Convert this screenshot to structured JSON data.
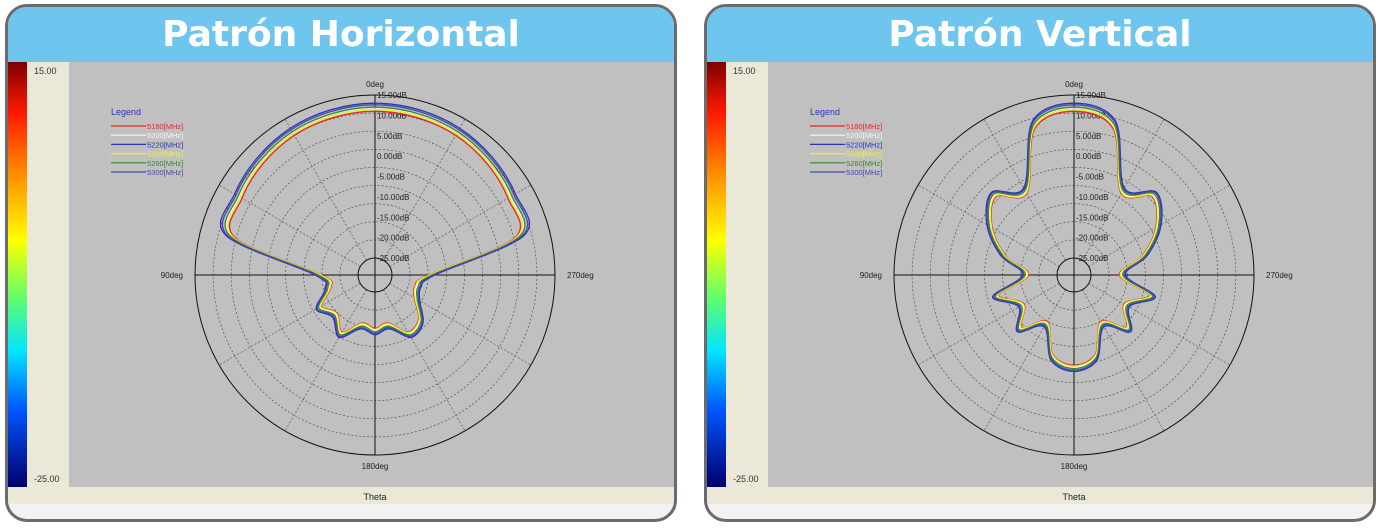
{
  "chart_data": [
    {
      "type": "polar",
      "title": "Patrón Horizontal",
      "colorbar": {
        "max_label": "15.00",
        "min_label": "-25.00",
        "unit": "dB"
      },
      "angle_labels": {
        "top": "0deg",
        "left": "90deg",
        "right": "270deg",
        "bottom": "180deg"
      },
      "axis_label": "Theta",
      "radial_labels": [
        "15.00dB",
        "10.00dB",
        "5.00dB",
        "0.00dB",
        "-5.00dB",
        "-10.00dB",
        "-15.00dB",
        "-20.00dB",
        "-25.00dB"
      ],
      "legend_title": "Legend",
      "angles_deg": [
        0,
        15,
        30,
        45,
        60,
        75,
        90,
        105,
        120,
        135,
        150,
        165,
        180,
        195,
        210,
        225,
        240,
        255,
        270,
        285,
        300,
        315,
        330,
        345
      ],
      "series": [
        {
          "name": "5180[MHz]",
          "color": "#e8252b",
          "values": [
            11.0,
            10.8,
            10.4,
            9.6,
            8.5,
            6.5,
            -16.0,
            -18.0,
            -14.0,
            -16.0,
            -13.0,
            -17.0,
            -16.0,
            -17.0,
            -13.0,
            -14.0,
            -18.0,
            -19.0,
            -16.0,
            6.5,
            8.5,
            9.6,
            10.4,
            10.8
          ]
        },
        {
          "name": "5200[MHz]",
          "color": "#f5f5f5",
          "values": [
            11.8,
            11.6,
            11.2,
            10.4,
            9.3,
            7.3,
            -15.5,
            -17.5,
            -13.5,
            -15.5,
            -12.5,
            -16.5,
            -15.5,
            -16.5,
            -12.5,
            -13.5,
            -17.5,
            -18.5,
            -15.5,
            7.3,
            9.3,
            10.4,
            11.2,
            11.6
          ]
        },
        {
          "name": "5220[MHz]",
          "color": "#2a35b8",
          "values": [
            13.0,
            12.8,
            12.4,
            11.6,
            10.6,
            8.8,
            -14.5,
            -16.5,
            -12.5,
            -14.5,
            -11.5,
            -15.5,
            -14.5,
            -15.5,
            -11.5,
            -12.5,
            -16.5,
            -17.5,
            -14.5,
            8.8,
            10.6,
            11.6,
            12.4,
            12.8
          ]
        },
        {
          "name": "5240[MHz]",
          "color": "#f4f22a",
          "values": [
            11.4,
            11.2,
            10.8,
            10.0,
            8.9,
            6.9,
            -15.8,
            -17.8,
            -13.8,
            -15.8,
            -12.8,
            -16.8,
            -15.8,
            -16.8,
            -12.8,
            -13.8,
            -17.8,
            -18.8,
            -15.8,
            6.9,
            8.9,
            10.0,
            10.8,
            11.2
          ]
        },
        {
          "name": "5260[MHz]",
          "color": "#2f8c2f",
          "values": [
            12.0,
            11.8,
            11.4,
            10.6,
            9.6,
            7.6,
            -15.2,
            -17.2,
            -13.2,
            -15.2,
            -12.2,
            -16.2,
            -15.2,
            -16.2,
            -12.2,
            -13.2,
            -17.2,
            -18.2,
            -15.2,
            7.6,
            9.6,
            10.6,
            11.4,
            11.8
          ]
        },
        {
          "name": "5300[MHz]",
          "color": "#4848a8",
          "values": [
            12.6,
            12.4,
            12.0,
            11.2,
            10.2,
            8.3,
            -14.8,
            -16.8,
            -12.8,
            -14.8,
            -11.8,
            -15.8,
            -14.8,
            -15.8,
            -11.8,
            -12.8,
            -16.8,
            -17.8,
            -14.8,
            8.3,
            10.2,
            11.2,
            12.0,
            12.4
          ]
        }
      ]
    },
    {
      "type": "polar",
      "title": "Patrón Vertical",
      "colorbar": {
        "max_label": "15.00",
        "min_label": "-25.00",
        "unit": "dB"
      },
      "angle_labels": {
        "top": "0deg",
        "left": "90deg",
        "right": "270deg",
        "bottom": "180deg"
      },
      "axis_label": "Theta",
      "radial_labels": [
        "15.00dB",
        "10.00dB",
        "5.00dB",
        "0.00dB",
        "-5.00dB",
        "-10.00dB",
        "-15.00dB",
        "-20.00dB",
        "-25.00dB"
      ],
      "legend_title": "Legend",
      "angles_deg": [
        0,
        15,
        30,
        45,
        60,
        75,
        90,
        105,
        120,
        135,
        150,
        165,
        180,
        195,
        210,
        225,
        240,
        255,
        270,
        285,
        300,
        315,
        330,
        345
      ],
      "series": [
        {
          "name": "5180[MHz]",
          "color": "#e8252b",
          "values": [
            11.0,
            8.0,
            -6.0,
            -2.0,
            -6.0,
            -12.0,
            -18.0,
            -10.0,
            -15.0,
            -11.0,
            -16.0,
            -9.0,
            -7.0,
            -9.0,
            -16.0,
            -11.0,
            -15.0,
            -10.0,
            -18.0,
            -12.0,
            -6.0,
            -2.0,
            -6.0,
            8.0
          ]
        },
        {
          "name": "5200[MHz]",
          "color": "#f5f5f5",
          "values": [
            11.8,
            8.8,
            -5.5,
            -1.5,
            -5.5,
            -11.5,
            -17.5,
            -9.5,
            -14.5,
            -10.5,
            -15.5,
            -8.5,
            -6.5,
            -8.5,
            -15.5,
            -10.5,
            -14.5,
            -9.5,
            -17.5,
            -11.5,
            -5.5,
            -1.5,
            -5.5,
            8.8
          ]
        },
        {
          "name": "5220[MHz]",
          "color": "#2a35b8",
          "values": [
            13.0,
            10.0,
            -4.5,
            -0.5,
            -4.5,
            -10.5,
            -16.5,
            -8.5,
            -13.5,
            -9.5,
            -14.5,
            -7.5,
            -5.5,
            -7.5,
            -14.5,
            -9.5,
            -13.5,
            -8.5,
            -16.5,
            -10.5,
            -4.5,
            -0.5,
            -4.5,
            10.0
          ]
        },
        {
          "name": "5240[MHz]",
          "color": "#f4f22a",
          "values": [
            11.4,
            8.4,
            -5.8,
            -1.8,
            -5.8,
            -11.8,
            -17.8,
            -9.8,
            -14.8,
            -10.8,
            -15.8,
            -8.8,
            -6.8,
            -8.8,
            -15.8,
            -10.8,
            -14.8,
            -9.8,
            -17.8,
            -11.8,
            -5.8,
            -1.8,
            -5.8,
            8.4
          ]
        },
        {
          "name": "5260[MHz]",
          "color": "#2f8c2f",
          "values": [
            12.0,
            9.0,
            -5.2,
            -1.2,
            -5.2,
            -11.2,
            -17.2,
            -9.2,
            -14.2,
            -10.2,
            -15.2,
            -8.2,
            -6.2,
            -8.2,
            -15.2,
            -10.2,
            -14.2,
            -9.2,
            -17.2,
            -11.2,
            -5.2,
            -1.2,
            -5.2,
            9.0
          ]
        },
        {
          "name": "5300[MHz]",
          "color": "#4848a8",
          "values": [
            12.6,
            9.6,
            -4.8,
            -0.8,
            -4.8,
            -10.8,
            -16.8,
            -8.8,
            -13.8,
            -9.8,
            -14.8,
            -7.8,
            -5.8,
            -7.8,
            -14.8,
            -9.8,
            -13.8,
            -8.8,
            -16.8,
            -10.8,
            -4.8,
            -0.8,
            -4.8,
            9.6
          ]
        }
      ]
    }
  ]
}
